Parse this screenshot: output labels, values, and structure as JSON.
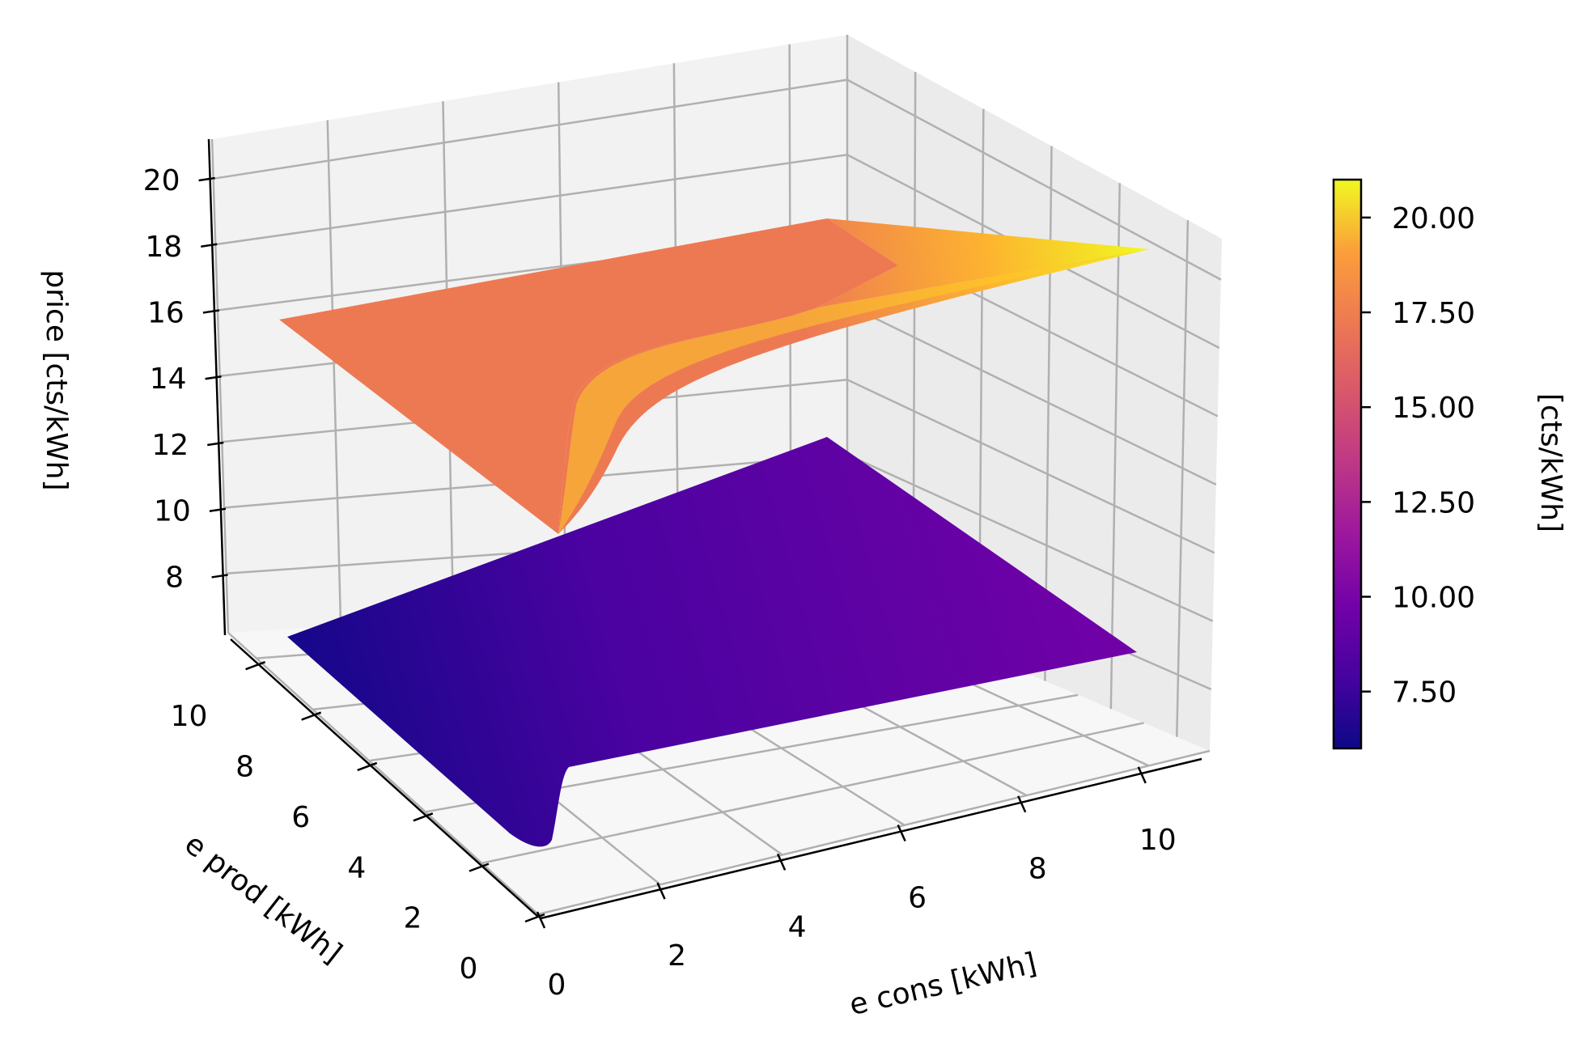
{
  "chart_data": {
    "type": "surface3d",
    "title": "",
    "xlabel": "e cons [kWh]",
    "ylabel": "e prod [kWh]",
    "zlabel": "price [cts/kWh]",
    "x_ticks": [
      "0",
      "2",
      "4",
      "6",
      "8",
      "10"
    ],
    "y_ticks": [
      "0",
      "2",
      "4",
      "6",
      "8",
      "10"
    ],
    "z_ticks": [
      "8",
      "10",
      "12",
      "14",
      "16",
      "18",
      "20"
    ],
    "xlim": [
      0,
      11
    ],
    "ylim": [
      0,
      11
    ],
    "zlim": [
      6.2,
      21.2
    ],
    "colormap": "plasma",
    "colorbar": {
      "label": "[cts/kWh]",
      "ticks": [
        "7.50",
        "10.00",
        "12.50",
        "15.00",
        "17.50",
        "20.00"
      ],
      "range": [
        6.0,
        21.0
      ]
    },
    "surfaces": [
      {
        "name": "upper",
        "corners": [
          {
            "x": 0,
            "y": 0,
            "z": 9.0
          },
          {
            "x": 0,
            "y": 11,
            "z": 16.0
          },
          {
            "x": 11,
            "y": 11,
            "z": 16.5
          },
          {
            "x": 11,
            "y": 0,
            "z": 21.0
          }
        ],
        "plateau_value": 16.0,
        "peak_value": 21.0
      },
      {
        "name": "lower",
        "corners": [
          {
            "x": 0,
            "y": 0,
            "z": 6.0
          },
          {
            "x": 0,
            "y": 11,
            "z": 6.2
          },
          {
            "x": 11,
            "y": 11,
            "z": 10.0
          },
          {
            "x": 11,
            "y": 0,
            "z": 10.2
          }
        ],
        "min_value": 6.0,
        "max_value": 10.2
      }
    ],
    "grid": true
  }
}
